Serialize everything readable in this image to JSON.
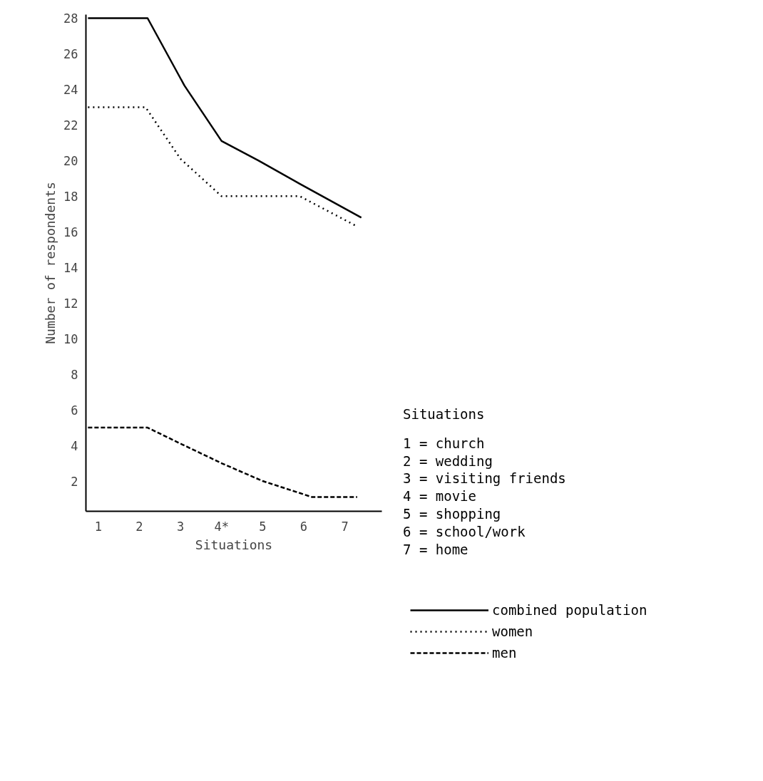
{
  "chart_data": {
    "type": "line",
    "xlabel": "Situations",
    "ylabel": "Number of respondents",
    "xlim": [
      0.7,
      7.9
    ],
    "ylim": [
      0.3,
      28.2
    ],
    "xticks": [
      1,
      2,
      3,
      {
        "value": 4,
        "label": "4*"
      },
      5,
      6,
      7
    ],
    "yticks": [
      2,
      4,
      6,
      8,
      10,
      12,
      14,
      16,
      18,
      20,
      22,
      24,
      26,
      28
    ],
    "grid": false,
    "legend": "bottom right",
    "marker": "none",
    "annotations": [
      "Situations",
      "1 = church",
      "2 = wedding",
      "3 = visiting friends",
      "4 = movie",
      "5 = shopping",
      "6 = school/work",
      "7 = home"
    ],
    "series": [
      {
        "name": "combined population",
        "color": "#000000",
        "line_style": "solid",
        "x": [
          0.75,
          2.2,
          3.1,
          4.0,
          4.9,
          5.9,
          7.4
        ],
        "values": [
          28,
          28,
          24.2,
          21.1,
          20.0,
          18.7,
          16.8
        ]
      },
      {
        "name": "women",
        "color": "#000000",
        "line_style": "dotted",
        "x": [
          0.75,
          2.15,
          3.0,
          4.0,
          5.9,
          7.3
        ],
        "values": [
          23,
          23,
          20.1,
          18,
          18,
          16.3
        ]
      },
      {
        "name": "men",
        "color": "#000000",
        "line_style": "dashed",
        "x": [
          0.75,
          2.2,
          3.0,
          4.0,
          5.0,
          6.2,
          7.3
        ],
        "values": [
          5,
          5,
          4.1,
          3,
          2,
          1.1,
          1.1
        ]
      }
    ]
  }
}
